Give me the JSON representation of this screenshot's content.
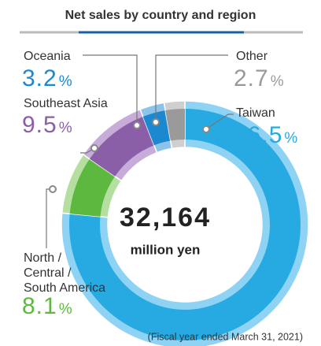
{
  "chart_data": {
    "type": "donut",
    "title": "Net sales by country and region",
    "categories": [
      "Taiwan",
      "North /\nCentral /\nSouth America",
      "Southeast Asia",
      "Oceania",
      "Other"
    ],
    "values": [
      76.5,
      8.1,
      9.5,
      3.2,
      2.7
    ],
    "unit": "%",
    "colors": [
      "#27a9e1",
      "#5cb83f",
      "#8b5ea8",
      "#1b88d0",
      "#9a9a9a"
    ],
    "light_colors": [
      "#8fd3f4",
      "#b5dfa0",
      "#c7acd9",
      "#8cc3ea",
      "#cfcfcf"
    ],
    "center_value": "32,164",
    "center_unit": "million yen",
    "footnote": "(Fiscal year ended March 31, 2021)"
  }
}
